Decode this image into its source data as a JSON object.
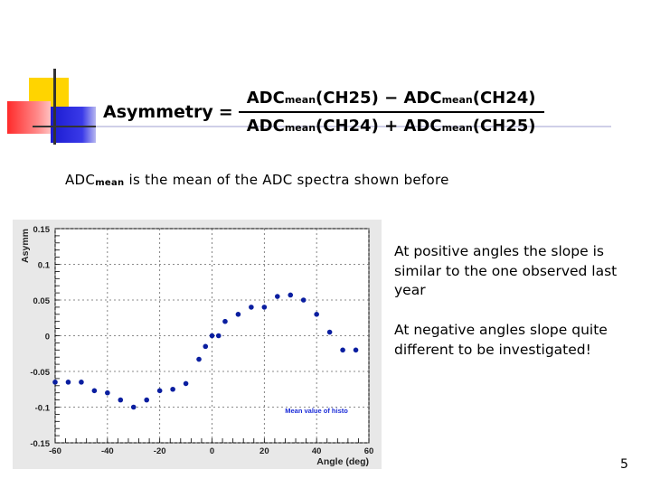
{
  "formula": {
    "lhs": "Asymmetry",
    "equals": "=",
    "numerator": {
      "a_main": "ADC",
      "a_sub": "mean",
      "a_arg": "(CH25)",
      "op": "−",
      "b_main": "ADC",
      "b_sub": "mean",
      "b_arg": "(CH24)"
    },
    "denominator": {
      "a_main": "ADC",
      "a_sub": "mean",
      "a_arg": "(CH24)",
      "op": "+",
      "b_main": "ADC",
      "b_sub": "mean",
      "b_arg": "(CH25)"
    }
  },
  "note": {
    "main": "ADC",
    "sub": "mean",
    "rest": " is the mean of the ADC spectra  shown before"
  },
  "text_positive": "At positive angles the slope is similar to the one observed last year",
  "text_negative": "At negative angles slope quite different to be investigated!",
  "page_number": "5",
  "chart_data": {
    "type": "scatter",
    "xlabel": "Angle (deg)",
    "ylabel": "Asymm",
    "xlim": [
      -60,
      60
    ],
    "ylim": [
      -0.15,
      0.15
    ],
    "xticks": [
      -60,
      -40,
      -20,
      0,
      20,
      40,
      60
    ],
    "yticks": [
      -0.15,
      -0.1,
      -0.05,
      0,
      0.05,
      0.1,
      0.15
    ],
    "xtick_labels": [
      "-60",
      "-40",
      "-20",
      "0",
      "20",
      "40",
      "60"
    ],
    "ytick_labels": [
      "-0.15",
      "-0.1",
      "-0.05",
      "0",
      "0.05",
      "0.1",
      "0.15"
    ],
    "grid": true,
    "legend": "Mean value of histo",
    "legend_position": "lower-right",
    "marker_color": "#0a1ea0",
    "series": [
      {
        "name": "Mean value of histo",
        "x": [
          -60,
          -55,
          -50,
          -45,
          -40,
          -35,
          -30,
          -25,
          -20,
          -15,
          -10,
          -5,
          -2.5,
          0,
          2.5,
          5,
          10,
          15,
          20,
          25,
          30,
          35,
          40,
          45,
          50,
          55
        ],
        "y": [
          -0.065,
          -0.065,
          -0.065,
          -0.077,
          -0.08,
          -0.09,
          -0.1,
          -0.09,
          -0.077,
          -0.075,
          -0.067,
          -0.033,
          -0.015,
          0.0,
          0.0,
          0.02,
          0.03,
          0.04,
          0.04,
          0.055,
          0.057,
          0.05,
          0.03,
          0.005,
          -0.02,
          -0.02
        ]
      }
    ]
  }
}
